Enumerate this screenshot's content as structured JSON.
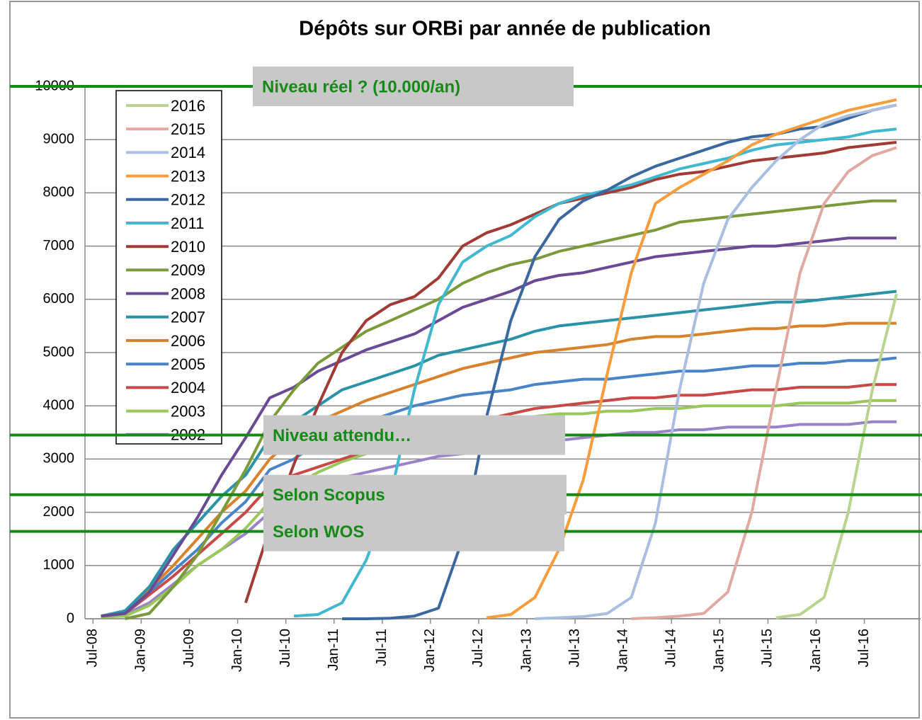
{
  "chart_data": {
    "type": "line",
    "title": "Dépôts sur ORBi par année de publication",
    "x": [
      "2008-08",
      "2008-11",
      "2009-02",
      "2009-05",
      "2009-08",
      "2009-11",
      "2010-02",
      "2010-05",
      "2010-08",
      "2010-11",
      "2011-02",
      "2011-05",
      "2011-08",
      "2011-11",
      "2012-02",
      "2012-05",
      "2012-08",
      "2012-11",
      "2013-02",
      "2013-05",
      "2013-08",
      "2013-11",
      "2014-02",
      "2014-05",
      "2014-08",
      "2014-11",
      "2015-02",
      "2015-05",
      "2015-08",
      "2015-11",
      "2016-02",
      "2016-05",
      "2016-08",
      "2016-11"
    ],
    "xlim": [
      "2008-06",
      "2017-02"
    ],
    "xticks": [
      {
        "value": "2008-07",
        "label": "Jul-08"
      },
      {
        "value": "2009-01",
        "label": "Jan-09"
      },
      {
        "value": "2009-07",
        "label": "Jul-09"
      },
      {
        "value": "2010-01",
        "label": "Jan-10"
      },
      {
        "value": "2010-07",
        "label": "Jul-10"
      },
      {
        "value": "2011-01",
        "label": "Jan-11"
      },
      {
        "value": "2011-07",
        "label": "Jul-11"
      },
      {
        "value": "2012-01",
        "label": "Jan-12"
      },
      {
        "value": "2012-07",
        "label": "Jul-12"
      },
      {
        "value": "2013-01",
        "label": "Jan-13"
      },
      {
        "value": "2013-07",
        "label": "Jul-13"
      },
      {
        "value": "2014-01",
        "label": "Jan-14"
      },
      {
        "value": "2014-07",
        "label": "Jul-14"
      },
      {
        "value": "2015-01",
        "label": "Jan-15"
      },
      {
        "value": "2015-07",
        "label": "Jul-15"
      },
      {
        "value": "2016-01",
        "label": "Jan-16"
      },
      {
        "value": "2016-07",
        "label": "Jul-16"
      }
    ],
    "ylim": [
      0,
      10000
    ],
    "yticks": [
      0,
      1000,
      2000,
      3000,
      4000,
      5000,
      6000,
      7000,
      8000,
      9000,
      10000
    ],
    "grid": true,
    "legend": "upper left",
    "series": [
      {
        "name": "2016",
        "color": "#b9d48f",
        "values": [
          null,
          null,
          null,
          null,
          null,
          null,
          null,
          null,
          null,
          null,
          null,
          null,
          null,
          null,
          null,
          null,
          null,
          null,
          null,
          null,
          null,
          null,
          null,
          null,
          null,
          null,
          null,
          null,
          20,
          80,
          400,
          2000,
          4300,
          6100
        ]
      },
      {
        "name": "2015",
        "color": "#e0aaa3",
        "values": [
          null,
          null,
          null,
          null,
          null,
          null,
          null,
          null,
          null,
          null,
          null,
          null,
          null,
          null,
          null,
          null,
          null,
          null,
          null,
          null,
          null,
          null,
          0,
          20,
          50,
          100,
          500,
          2000,
          4300,
          6500,
          7800,
          8400,
          8700,
          8850
        ]
      },
      {
        "name": "2014",
        "color": "#a9bee0",
        "values": [
          null,
          null,
          null,
          null,
          null,
          null,
          null,
          null,
          null,
          null,
          null,
          null,
          null,
          null,
          null,
          null,
          null,
          null,
          0,
          20,
          40,
          100,
          400,
          1800,
          4300,
          6300,
          7500,
          8100,
          8600,
          9000,
          9300,
          9450,
          9550,
          9650
        ]
      },
      {
        "name": "2013",
        "color": "#f89c3c",
        "values": [
          null,
          null,
          null,
          null,
          null,
          null,
          null,
          null,
          null,
          null,
          null,
          null,
          null,
          null,
          null,
          null,
          20,
          80,
          400,
          1300,
          2600,
          4600,
          6500,
          7800,
          8100,
          8350,
          8600,
          8900,
          9100,
          9250,
          9400,
          9550,
          9650,
          9750
        ]
      },
      {
        "name": "2012",
        "color": "#3b68a0",
        "values": [
          null,
          null,
          null,
          null,
          null,
          null,
          null,
          null,
          null,
          null,
          0,
          0,
          10,
          50,
          200,
          1500,
          3800,
          5600,
          6800,
          7500,
          7850,
          8050,
          8300,
          8500,
          8650,
          8800,
          8950,
          9050,
          9100,
          9200,
          9250,
          9400,
          9550,
          9650
        ]
      },
      {
        "name": "2011",
        "color": "#40b8d0",
        "values": [
          null,
          null,
          null,
          null,
          null,
          null,
          null,
          null,
          50,
          80,
          300,
          1100,
          2300,
          4300,
          5900,
          6700,
          7000,
          7200,
          7550,
          7800,
          7950,
          8050,
          8150,
          8300,
          8450,
          8550,
          8650,
          8800,
          8900,
          8950,
          9000,
          9050,
          9150,
          9200
        ]
      },
      {
        "name": "2010",
        "color": "#a23b35",
        "values": [
          null,
          null,
          null,
          null,
          null,
          null,
          300,
          1700,
          2900,
          4000,
          5000,
          5600,
          5900,
          6050,
          6400,
          7000,
          7250,
          7400,
          7600,
          7800,
          7900,
          8000,
          8100,
          8250,
          8350,
          8400,
          8500,
          8600,
          8650,
          8700,
          8750,
          8850,
          8900,
          8950
        ]
      },
      {
        "name": "2009",
        "color": "#7b9a3a",
        "values": [
          null,
          0,
          100,
          600,
          1200,
          2000,
          2800,
          3700,
          4300,
          4800,
          5100,
          5400,
          5600,
          5800,
          6000,
          6300,
          6500,
          6650,
          6750,
          6900,
          7000,
          7100,
          7200,
          7300,
          7450,
          7500,
          7550,
          7600,
          7650,
          7700,
          7750,
          7800,
          7850,
          7850
        ]
      },
      {
        "name": "2008",
        "color": "#6a4a94",
        "values": [
          50,
          100,
          500,
          1200,
          1900,
          2700,
          3400,
          4150,
          4350,
          4650,
          4850,
          5050,
          5200,
          5350,
          5600,
          5850,
          6000,
          6150,
          6350,
          6450,
          6500,
          6600,
          6700,
          6800,
          6850,
          6900,
          6950,
          7000,
          7000,
          7050,
          7100,
          7150,
          7150,
          7150
        ]
      },
      {
        "name": "2007",
        "color": "#2a93a7",
        "values": [
          50,
          150,
          600,
          1300,
          1800,
          2300,
          2700,
          3400,
          3700,
          4000,
          4300,
          4450,
          4600,
          4750,
          4950,
          5050,
          5150,
          5250,
          5400,
          5500,
          5550,
          5600,
          5650,
          5700,
          5750,
          5800,
          5850,
          5900,
          5950,
          5950,
          6000,
          6050,
          6100,
          6150
        ]
      },
      {
        "name": "2006",
        "color": "#d8822c",
        "values": [
          50,
          120,
          550,
          1000,
          1500,
          2000,
          2400,
          3000,
          3400,
          3700,
          3900,
          4100,
          4250,
          4400,
          4550,
          4700,
          4800,
          4900,
          5000,
          5050,
          5100,
          5150,
          5250,
          5300,
          5300,
          5350,
          5400,
          5450,
          5450,
          5500,
          5500,
          5550,
          5550,
          5550
        ]
      },
      {
        "name": "2005",
        "color": "#4a84c8",
        "values": [
          50,
          100,
          500,
          900,
          1300,
          1800,
          2200,
          2800,
          3000,
          3300,
          3550,
          3700,
          3850,
          4000,
          4100,
          4200,
          4250,
          4300,
          4400,
          4450,
          4500,
          4500,
          4550,
          4600,
          4650,
          4650,
          4700,
          4750,
          4750,
          4800,
          4800,
          4850,
          4850,
          4900
        ]
      },
      {
        "name": "2004",
        "color": "#c84a48",
        "values": [
          50,
          100,
          450,
          800,
          1200,
          1600,
          2000,
          2500,
          2700,
          2850,
          3000,
          3150,
          3300,
          3450,
          3550,
          3650,
          3750,
          3850,
          3950,
          4000,
          4050,
          4100,
          4150,
          4150,
          4200,
          4200,
          4250,
          4300,
          4300,
          4350,
          4350,
          4350,
          4400,
          4400
        ]
      },
      {
        "name": "2003",
        "color": "#9ac85a",
        "values": [
          30,
          50,
          250,
          600,
          1000,
          1300,
          1700,
          2200,
          2500,
          2750,
          2950,
          3100,
          3250,
          3400,
          3500,
          3600,
          3650,
          3700,
          3800,
          3850,
          3850,
          3900,
          3900,
          3950,
          3950,
          4000,
          4000,
          4000,
          4000,
          4050,
          4050,
          4050,
          4100,
          4100
        ]
      },
      {
        "name": "2002",
        "color": "#9a82c8",
        "values": [
          50,
          80,
          300,
          650,
          1000,
          1300,
          1600,
          2000,
          2300,
          2500,
          2650,
          2750,
          2850,
          2950,
          3050,
          3100,
          3150,
          3250,
          3300,
          3350,
          3400,
          3450,
          3500,
          3500,
          3550,
          3550,
          3600,
          3600,
          3600,
          3650,
          3650,
          3650,
          3700,
          3700
        ]
      }
    ],
    "annotations": [
      {
        "text": "Niveau réel ? (10.000/an)",
        "value": 10000,
        "color": "#168a16"
      },
      {
        "text": "Niveau attendu…",
        "value": 3450,
        "color": "#168a16"
      },
      {
        "text": "Selon Scopus",
        "value": 2330,
        "color": "#168a16"
      },
      {
        "text": "Selon WOS",
        "value": 1640,
        "color": "#168a16"
      }
    ]
  }
}
